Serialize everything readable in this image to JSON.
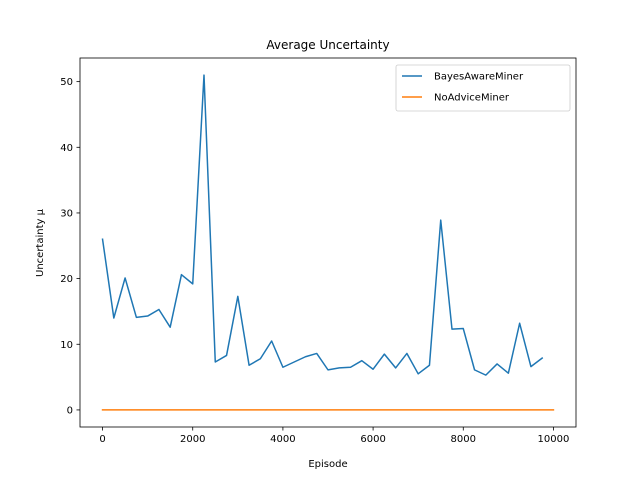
{
  "chart_data": {
    "type": "line",
    "title": "Average Uncertainty",
    "xlabel": "Episode",
    "ylabel": "Uncertainty μ",
    "xlim": [
      -500,
      10500
    ],
    "ylim": [
      -2.6,
      53.6
    ],
    "xticks": [
      0,
      2000,
      4000,
      6000,
      8000,
      10000
    ],
    "yticks": [
      0,
      10,
      20,
      30,
      40,
      50
    ],
    "grid": false,
    "legend_position": "top-right",
    "series": [
      {
        "name": "BayesAwareMiner",
        "color": "#1f77b4",
        "x": [
          0,
          250,
          500,
          750,
          1000,
          1250,
          1500,
          1750,
          2000,
          2250,
          2500,
          2750,
          3000,
          3250,
          3500,
          3750,
          4000,
          4250,
          4500,
          4750,
          5000,
          5250,
          5500,
          5750,
          6000,
          6250,
          6500,
          6750,
          7000,
          7250,
          7500,
          7750,
          8000,
          8250,
          8500,
          8750,
          9000,
          9250,
          9500,
          9750
        ],
        "y": [
          26.0,
          14.0,
          20.1,
          14.1,
          14.3,
          15.3,
          12.6,
          20.6,
          19.2,
          51.0,
          7.3,
          8.3,
          17.3,
          6.8,
          7.8,
          10.5,
          6.5,
          7.3,
          8.1,
          8.6,
          6.1,
          6.4,
          6.5,
          7.5,
          6.2,
          8.5,
          6.4,
          8.6,
          5.5,
          6.8,
          28.9,
          12.3,
          12.4,
          6.1,
          5.3,
          7.0,
          5.6,
          13.2,
          6.6,
          7.9
        ]
      },
      {
        "name": "NoAdviceMiner",
        "color": "#ff7f0e",
        "x": [
          0,
          2000,
          4000,
          6000,
          8000,
          10000
        ],
        "y": [
          0,
          0,
          0,
          0,
          0,
          0
        ]
      }
    ]
  }
}
